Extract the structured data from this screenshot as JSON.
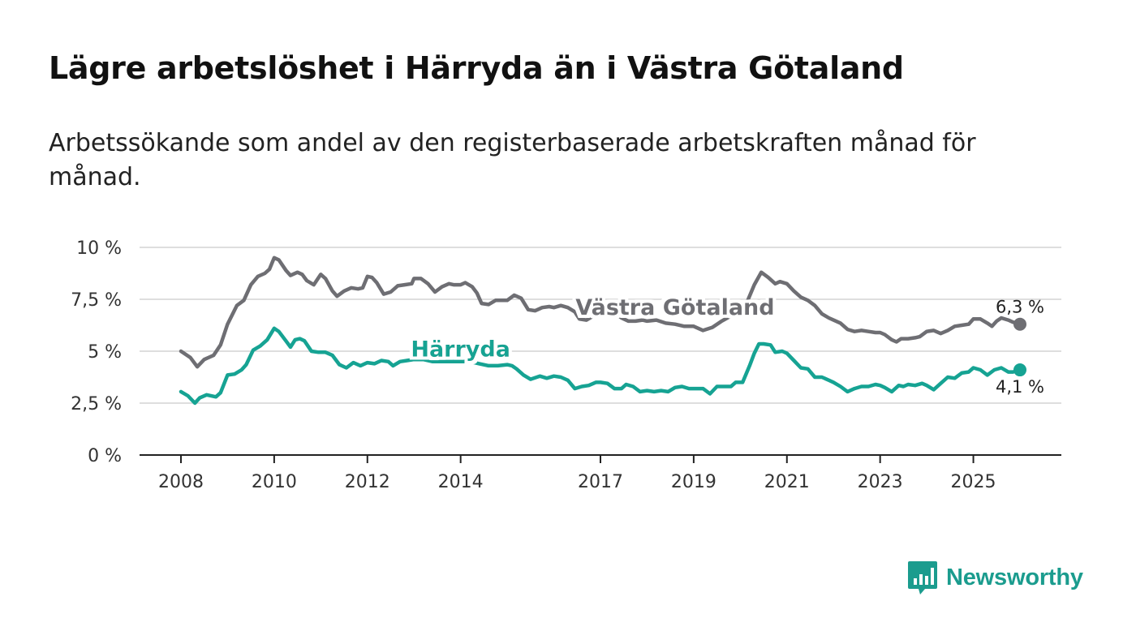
{
  "header": {
    "title": "Lägre arbetslöshet i Härryda än i Västra Götaland",
    "subtitle": "Arbetssökande som andel av den registerbaserade arbetskraften månad för månad."
  },
  "logo": {
    "text": "Newsworthy",
    "icon": "newsworthy-chart-bubble-icon"
  },
  "colors": {
    "vastra": "#6e6e73",
    "harryda": "#16a393",
    "grid": "#d4d4d4",
    "axis": "#222222"
  },
  "chart_data": {
    "type": "line",
    "title": "Lägre arbetslöshet i Härryda än i Västra Götaland",
    "xlabel": "",
    "ylabel": "",
    "xlim": [
      2008,
      2026.2
    ],
    "ylim": [
      0,
      10
    ],
    "y_ticks": [
      {
        "value": 0,
        "label": "0 %"
      },
      {
        "value": 2.5,
        "label": "2,5 %"
      },
      {
        "value": 5,
        "label": "5 %"
      },
      {
        "value": 7.5,
        "label": "7,5 %"
      },
      {
        "value": 10,
        "label": "10 %"
      }
    ],
    "x_ticks": [
      {
        "value": 2008,
        "label": "2008"
      },
      {
        "value": 2010,
        "label": "2010"
      },
      {
        "value": 2012,
        "label": "2012"
      },
      {
        "value": 2014,
        "label": "2014"
      },
      {
        "value": 2017,
        "label": "2017"
      },
      {
        "value": 2019,
        "label": "2019"
      },
      {
        "value": 2021,
        "label": "2021"
      },
      {
        "value": 2023,
        "label": "2023"
      },
      {
        "value": 2025,
        "label": "2025"
      }
    ],
    "grid": true,
    "series": [
      {
        "name": "Västra Götaland",
        "color": "#6e6e73",
        "end_label": "6,3 %",
        "points": [
          [
            2008.0,
            5.0
          ],
          [
            2008.2,
            4.7
          ],
          [
            2008.35,
            4.25
          ],
          [
            2008.5,
            4.6
          ],
          [
            2008.7,
            4.8
          ],
          [
            2008.85,
            5.3
          ],
          [
            2009.0,
            6.3
          ],
          [
            2009.2,
            7.2
          ],
          [
            2009.35,
            7.45
          ],
          [
            2009.5,
            8.2
          ],
          [
            2009.65,
            8.6
          ],
          [
            2009.8,
            8.75
          ],
          [
            2009.9,
            8.95
          ],
          [
            2010.0,
            9.5
          ],
          [
            2010.1,
            9.4
          ],
          [
            2010.25,
            8.9
          ],
          [
            2010.35,
            8.65
          ],
          [
            2010.5,
            8.8
          ],
          [
            2010.6,
            8.7
          ],
          [
            2010.7,
            8.4
          ],
          [
            2010.85,
            8.2
          ],
          [
            2011.0,
            8.7
          ],
          [
            2011.1,
            8.5
          ],
          [
            2011.25,
            7.9
          ],
          [
            2011.35,
            7.65
          ],
          [
            2011.5,
            7.9
          ],
          [
            2011.65,
            8.05
          ],
          [
            2011.8,
            8.0
          ],
          [
            2011.9,
            8.05
          ],
          [
            2012.0,
            8.6
          ],
          [
            2012.1,
            8.55
          ],
          [
            2012.2,
            8.3
          ],
          [
            2012.35,
            7.75
          ],
          [
            2012.5,
            7.85
          ],
          [
            2012.65,
            8.15
          ],
          [
            2012.8,
            8.2
          ],
          [
            2012.95,
            8.25
          ],
          [
            2013.0,
            8.5
          ],
          [
            2013.15,
            8.5
          ],
          [
            2013.3,
            8.25
          ],
          [
            2013.45,
            7.85
          ],
          [
            2013.6,
            8.1
          ],
          [
            2013.75,
            8.25
          ],
          [
            2013.85,
            8.2
          ],
          [
            2014.0,
            8.2
          ],
          [
            2014.1,
            8.3
          ],
          [
            2014.25,
            8.1
          ],
          [
            2014.35,
            7.8
          ],
          [
            2014.45,
            7.3
          ],
          [
            2014.6,
            7.25
          ],
          [
            2014.75,
            7.45
          ],
          [
            2014.9,
            7.45
          ],
          [
            2015.0,
            7.45
          ],
          [
            2015.15,
            7.7
          ],
          [
            2015.3,
            7.55
          ],
          [
            2015.45,
            7.0
          ],
          [
            2015.6,
            6.95
          ],
          [
            2015.75,
            7.1
          ],
          [
            2015.9,
            7.15
          ],
          [
            2016.0,
            7.1
          ],
          [
            2016.15,
            7.2
          ],
          [
            2016.3,
            7.1
          ],
          [
            2016.45,
            6.9
          ],
          [
            2016.55,
            6.55
          ],
          [
            2016.7,
            6.5
          ],
          [
            2016.85,
            6.7
          ],
          [
            2017.0,
            6.75
          ],
          [
            2017.15,
            6.9
          ],
          [
            2017.3,
            6.85
          ],
          [
            2017.45,
            6.6
          ],
          [
            2017.6,
            6.45
          ],
          [
            2017.75,
            6.45
          ],
          [
            2017.9,
            6.5
          ],
          [
            2018.0,
            6.45
          ],
          [
            2018.2,
            6.5
          ],
          [
            2018.4,
            6.35
          ],
          [
            2018.6,
            6.3
          ],
          [
            2018.8,
            6.2
          ],
          [
            2019.0,
            6.2
          ],
          [
            2019.2,
            6.0
          ],
          [
            2019.4,
            6.15
          ],
          [
            2019.6,
            6.45
          ],
          [
            2019.8,
            6.7
          ],
          [
            2020.0,
            6.9
          ],
          [
            2020.15,
            7.4
          ],
          [
            2020.3,
            8.2
          ],
          [
            2020.45,
            8.8
          ],
          [
            2020.6,
            8.55
          ],
          [
            2020.75,
            8.25
          ],
          [
            2020.85,
            8.35
          ],
          [
            2021.0,
            8.25
          ],
          [
            2021.15,
            7.9
          ],
          [
            2021.3,
            7.6
          ],
          [
            2021.45,
            7.45
          ],
          [
            2021.6,
            7.2
          ],
          [
            2021.75,
            6.8
          ],
          [
            2021.9,
            6.6
          ],
          [
            2022.0,
            6.5
          ],
          [
            2022.15,
            6.35
          ],
          [
            2022.3,
            6.05
          ],
          [
            2022.45,
            5.95
          ],
          [
            2022.6,
            6.0
          ],
          [
            2022.75,
            5.95
          ],
          [
            2022.9,
            5.9
          ],
          [
            2023.0,
            5.9
          ],
          [
            2023.1,
            5.8
          ],
          [
            2023.25,
            5.55
          ],
          [
            2023.35,
            5.45
          ],
          [
            2023.45,
            5.6
          ],
          [
            2023.6,
            5.6
          ],
          [
            2023.75,
            5.65
          ],
          [
            2023.85,
            5.7
          ],
          [
            2024.0,
            5.95
          ],
          [
            2024.15,
            6.0
          ],
          [
            2024.3,
            5.85
          ],
          [
            2024.45,
            6.0
          ],
          [
            2024.6,
            6.2
          ],
          [
            2024.75,
            6.25
          ],
          [
            2024.9,
            6.3
          ],
          [
            2025.0,
            6.55
          ],
          [
            2025.15,
            6.55
          ],
          [
            2025.3,
            6.35
          ],
          [
            2025.4,
            6.2
          ],
          [
            2025.5,
            6.45
          ],
          [
            2025.6,
            6.6
          ],
          [
            2025.75,
            6.5
          ],
          [
            2025.85,
            6.4
          ],
          [
            2026.0,
            6.3
          ]
        ]
      },
      {
        "name": "Härryda",
        "color": "#16a393",
        "end_label": "4,1 %",
        "points": [
          [
            2008.0,
            3.05
          ],
          [
            2008.15,
            2.85
          ],
          [
            2008.3,
            2.5
          ],
          [
            2008.4,
            2.75
          ],
          [
            2008.55,
            2.9
          ],
          [
            2008.75,
            2.8
          ],
          [
            2008.85,
            3.0
          ],
          [
            2009.0,
            3.85
          ],
          [
            2009.15,
            3.9
          ],
          [
            2009.3,
            4.1
          ],
          [
            2009.4,
            4.35
          ],
          [
            2009.55,
            5.05
          ],
          [
            2009.7,
            5.25
          ],
          [
            2009.85,
            5.55
          ],
          [
            2010.0,
            6.1
          ],
          [
            2010.1,
            5.95
          ],
          [
            2010.25,
            5.5
          ],
          [
            2010.35,
            5.2
          ],
          [
            2010.45,
            5.55
          ],
          [
            2010.55,
            5.6
          ],
          [
            2010.65,
            5.5
          ],
          [
            2010.8,
            5.0
          ],
          [
            2010.95,
            4.95
          ],
          [
            2011.1,
            4.95
          ],
          [
            2011.25,
            4.8
          ],
          [
            2011.4,
            4.35
          ],
          [
            2011.55,
            4.2
          ],
          [
            2011.7,
            4.45
          ],
          [
            2011.85,
            4.3
          ],
          [
            2012.0,
            4.45
          ],
          [
            2012.15,
            4.4
          ],
          [
            2012.3,
            4.55
          ],
          [
            2012.45,
            4.5
          ],
          [
            2012.55,
            4.3
          ],
          [
            2012.7,
            4.5
          ],
          [
            2012.85,
            4.55
          ],
          [
            2013.0,
            4.6
          ],
          [
            2013.2,
            4.6
          ],
          [
            2013.4,
            4.5
          ],
          [
            2013.6,
            4.5
          ],
          [
            2013.8,
            4.5
          ],
          [
            2014.0,
            4.5
          ],
          [
            2014.2,
            4.5
          ],
          [
            2014.4,
            4.4
          ],
          [
            2014.6,
            4.3
          ],
          [
            2014.8,
            4.3
          ],
          [
            2015.0,
            4.35
          ],
          [
            2015.1,
            4.3
          ],
          [
            2015.2,
            4.15
          ],
          [
            2015.35,
            3.85
          ],
          [
            2015.5,
            3.65
          ],
          [
            2015.7,
            3.8
          ],
          [
            2015.85,
            3.7
          ],
          [
            2016.0,
            3.8
          ],
          [
            2016.15,
            3.75
          ],
          [
            2016.3,
            3.6
          ],
          [
            2016.45,
            3.2
          ],
          [
            2016.6,
            3.3
          ],
          [
            2016.75,
            3.35
          ],
          [
            2016.9,
            3.5
          ],
          [
            2017.0,
            3.5
          ],
          [
            2017.15,
            3.45
          ],
          [
            2017.3,
            3.2
          ],
          [
            2017.45,
            3.2
          ],
          [
            2017.55,
            3.4
          ],
          [
            2017.7,
            3.3
          ],
          [
            2017.85,
            3.05
          ],
          [
            2018.0,
            3.1
          ],
          [
            2018.15,
            3.05
          ],
          [
            2018.3,
            3.1
          ],
          [
            2018.45,
            3.05
          ],
          [
            2018.6,
            3.25
          ],
          [
            2018.75,
            3.3
          ],
          [
            2018.9,
            3.2
          ],
          [
            2019.0,
            3.2
          ],
          [
            2019.2,
            3.2
          ],
          [
            2019.35,
            2.95
          ],
          [
            2019.5,
            3.3
          ],
          [
            2019.65,
            3.3
          ],
          [
            2019.8,
            3.3
          ],
          [
            2019.9,
            3.5
          ],
          [
            2020.05,
            3.5
          ],
          [
            2020.2,
            4.3
          ],
          [
            2020.3,
            4.9
          ],
          [
            2020.4,
            5.35
          ],
          [
            2020.5,
            5.35
          ],
          [
            2020.65,
            5.3
          ],
          [
            2020.75,
            4.95
          ],
          [
            2020.9,
            5.0
          ],
          [
            2021.0,
            4.9
          ],
          [
            2021.15,
            4.55
          ],
          [
            2021.3,
            4.2
          ],
          [
            2021.45,
            4.15
          ],
          [
            2021.6,
            3.75
          ],
          [
            2021.75,
            3.75
          ],
          [
            2021.9,
            3.6
          ],
          [
            2022.0,
            3.5
          ],
          [
            2022.15,
            3.3
          ],
          [
            2022.3,
            3.05
          ],
          [
            2022.45,
            3.2
          ],
          [
            2022.6,
            3.3
          ],
          [
            2022.75,
            3.3
          ],
          [
            2022.9,
            3.4
          ],
          [
            2023.0,
            3.35
          ],
          [
            2023.1,
            3.25
          ],
          [
            2023.25,
            3.05
          ],
          [
            2023.4,
            3.35
          ],
          [
            2023.5,
            3.3
          ],
          [
            2023.6,
            3.4
          ],
          [
            2023.75,
            3.35
          ],
          [
            2023.9,
            3.45
          ],
          [
            2024.0,
            3.35
          ],
          [
            2024.15,
            3.15
          ],
          [
            2024.3,
            3.45
          ],
          [
            2024.45,
            3.75
          ],
          [
            2024.6,
            3.7
          ],
          [
            2024.75,
            3.95
          ],
          [
            2024.9,
            4.0
          ],
          [
            2025.0,
            4.2
          ],
          [
            2025.15,
            4.1
          ],
          [
            2025.3,
            3.85
          ],
          [
            2025.45,
            4.1
          ],
          [
            2025.6,
            4.2
          ],
          [
            2025.75,
            4.0
          ],
          [
            2025.85,
            4.0
          ],
          [
            2026.0,
            4.1
          ]
        ]
      }
    ],
    "annotations": [
      {
        "text": "Västra Götaland",
        "series": "Västra Götaland",
        "x": 2018.6,
        "y": 6.75,
        "color": "#6e6e73"
      },
      {
        "text": "Härryda",
        "series": "Härryda",
        "x": 2014.0,
        "y": 4.75,
        "color": "#16a393"
      }
    ]
  }
}
